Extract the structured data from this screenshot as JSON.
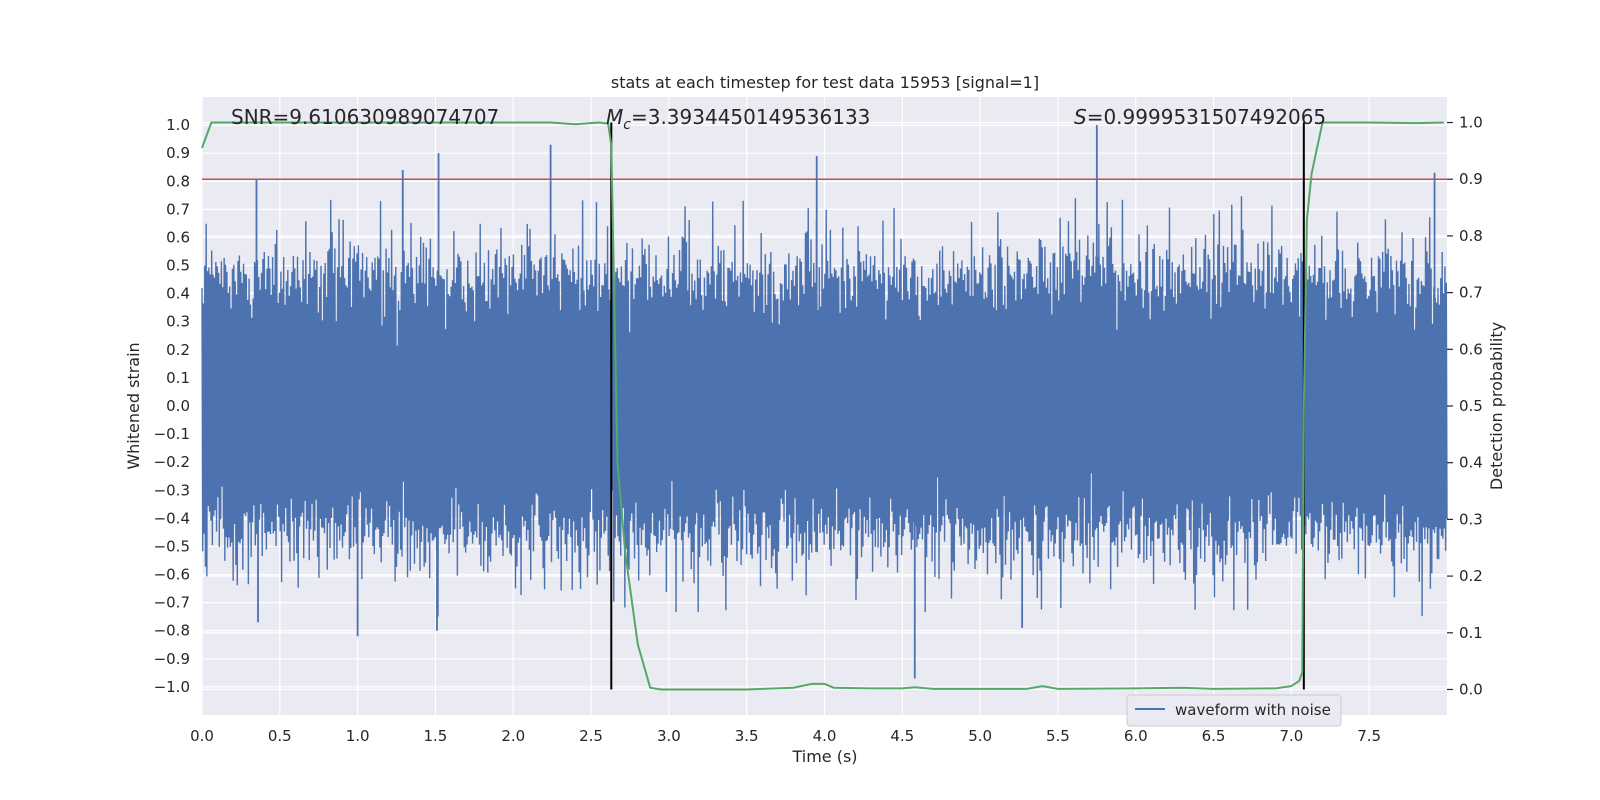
{
  "chart_data": {
    "type": "line",
    "title": "stats at each timestep for test data 15953 [signal=1]",
    "xlabel": "Time (s)",
    "ylabel_left": "Whitened strain",
    "ylabel_right": "Detection probability",
    "xlim": [
      0.0,
      8.0
    ],
    "ylim_left": [
      -1.1,
      1.1
    ],
    "ylim_right": [
      -0.045,
      1.045
    ],
    "x_ticks": [
      "0.0",
      "0.5",
      "1.0",
      "1.5",
      "2.0",
      "2.5",
      "3.0",
      "3.5",
      "4.0",
      "4.5",
      "5.0",
      "5.5",
      "6.0",
      "6.5",
      "7.0",
      "7.5"
    ],
    "x_tick_values": [
      0.0,
      0.5,
      1.0,
      1.5,
      2.0,
      2.5,
      3.0,
      3.5,
      4.0,
      4.5,
      5.0,
      5.5,
      6.0,
      6.5,
      7.0,
      7.5
    ],
    "y_left_ticks": [
      "1.0",
      "0.9",
      "0.8",
      "0.7",
      "0.6",
      "0.5",
      "0.4",
      "0.3",
      "0.2",
      "0.1",
      "0.0",
      "−0.1",
      "−0.2",
      "−0.3",
      "−0.4",
      "−0.5",
      "−0.6",
      "−0.7",
      "−0.8",
      "−0.9",
      "−1.0"
    ],
    "y_left_tick_values": [
      1.0,
      0.9,
      0.8,
      0.7,
      0.6,
      0.5,
      0.4,
      0.3,
      0.2,
      0.1,
      0.0,
      -0.1,
      -0.2,
      -0.3,
      -0.4,
      -0.5,
      -0.6,
      -0.7,
      -0.8,
      -0.9,
      -1.0
    ],
    "y_right_ticks": [
      "1.0",
      "0.9",
      "0.8",
      "0.7",
      "0.6",
      "0.5",
      "0.4",
      "0.3",
      "0.2",
      "0.1",
      "0.0"
    ],
    "y_right_tick_values": [
      1.0,
      0.9,
      0.8,
      0.7,
      0.6,
      0.5,
      0.4,
      0.3,
      0.2,
      0.1,
      0.0
    ],
    "annotations": {
      "snr": "SNR=9.610630989074707",
      "mc_prefix": "M",
      "mc_sub": "c",
      "mc_value": "=3.3934450149536133",
      "s_prefix": "S",
      "s_value": "=0.9999531507492065"
    },
    "threshold": {
      "value": 0.9,
      "axis": "right",
      "color": "#c44e52"
    },
    "vertical_lines": [
      2.63,
      7.08
    ],
    "waveform": {
      "name": "waveform with noise",
      "color": "#4c72b0",
      "x_range": [
        0.0,
        8.0
      ],
      "sample_count": 1800,
      "typical_amplitude": 0.4,
      "noted_peaks": [
        {
          "x": 0.35,
          "y": 0.81
        },
        {
          "x": 1.29,
          "y": 0.84
        },
        {
          "x": 1.52,
          "y": 0.9
        },
        {
          "x": 2.24,
          "y": 0.93
        },
        {
          "x": 3.95,
          "y": 0.89
        },
        {
          "x": 5.75,
          "y": 1.0
        },
        {
          "x": 7.92,
          "y": 0.83
        },
        {
          "x": 0.36,
          "y": -0.77
        },
        {
          "x": 1.0,
          "y": -0.82
        },
        {
          "x": 1.51,
          "y": -0.8
        },
        {
          "x": 5.27,
          "y": -0.79
        },
        {
          "x": 4.58,
          "y": -0.97
        }
      ]
    },
    "probability": {
      "name": "detection probability",
      "color": "#55a868",
      "x": [
        0.0,
        0.06,
        0.2,
        1.0,
        2.0,
        2.24,
        2.4,
        2.55,
        2.61,
        2.63,
        2.67,
        2.72,
        2.8,
        2.88,
        2.95,
        3.1,
        3.5,
        3.8,
        3.92,
        4.0,
        4.06,
        4.3,
        4.5,
        4.58,
        4.7,
        5.0,
        5.3,
        5.4,
        5.5,
        6.0,
        6.3,
        6.5,
        6.9,
        7.0,
        7.05,
        7.07,
        7.08,
        7.1,
        7.13,
        7.2,
        7.5,
        7.8,
        7.98
      ],
      "y": [
        0.955,
        1.0,
        1.0,
        1.0,
        1.0,
        1.0,
        0.997,
        1.0,
        0.998,
        0.96,
        0.4,
        0.24,
        0.08,
        0.003,
        0.0,
        0.0,
        0.0,
        0.003,
        0.01,
        0.01,
        0.003,
        0.002,
        0.002,
        0.004,
        0.001,
        0.001,
        0.001,
        0.006,
        0.001,
        0.002,
        0.003,
        0.001,
        0.002,
        0.006,
        0.015,
        0.03,
        0.5,
        0.83,
        0.91,
        1.0,
        1.0,
        0.999,
        1.0
      ]
    },
    "legend": {
      "label": "waveform with noise",
      "placement": "bottom-right"
    }
  }
}
